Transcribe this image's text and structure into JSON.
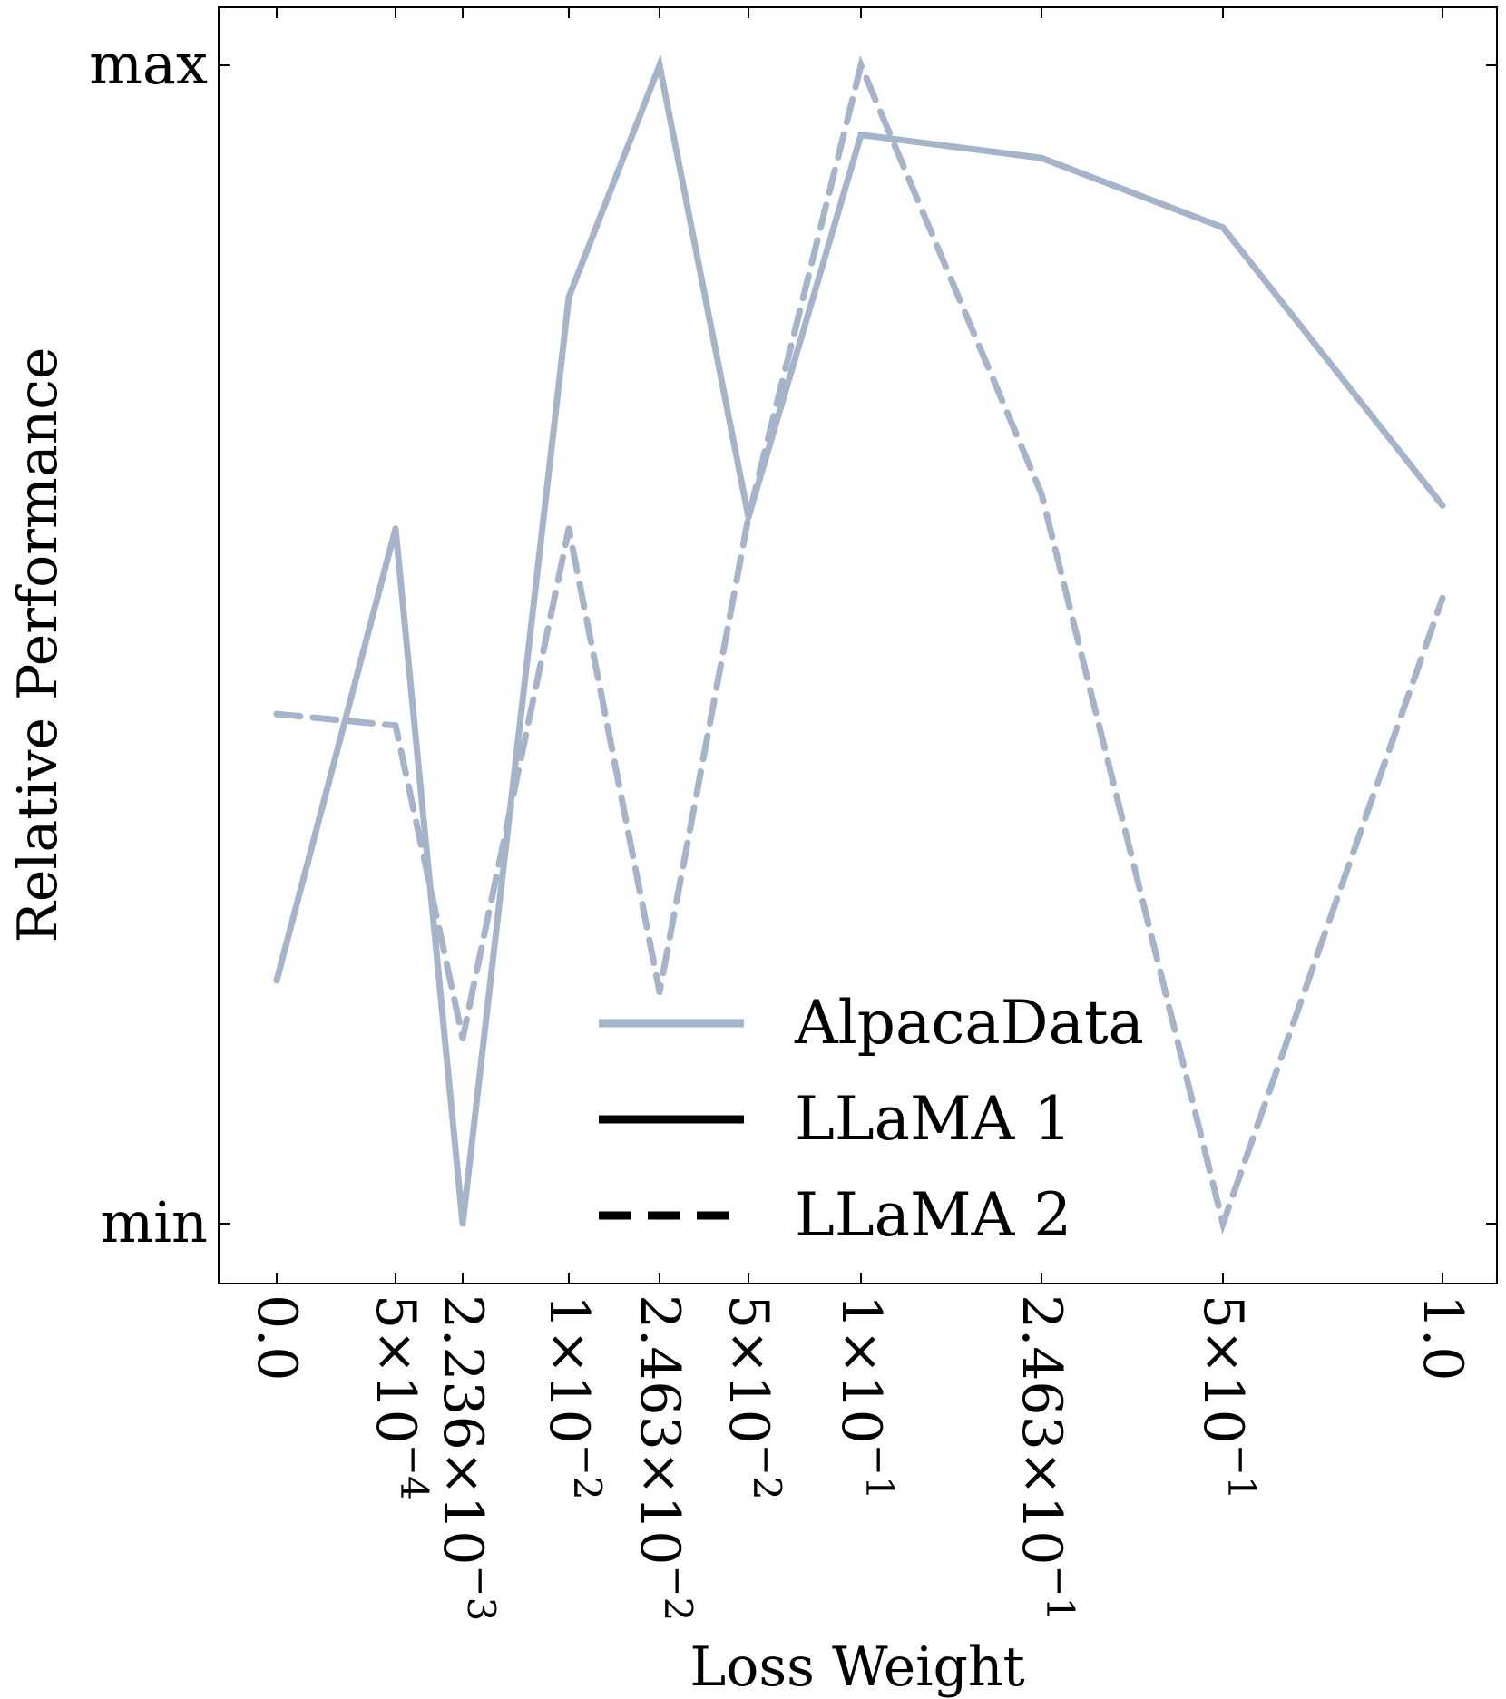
{
  "chart_data": {
    "type": "line",
    "title": "",
    "xlabel": "Loss Weight",
    "ylabel": "Relative Performance",
    "x_ticks": [
      {
        "mant": "0.0",
        "exp": ""
      },
      {
        "mant": "5×10",
        "exp": "−4"
      },
      {
        "mant": "2.236×10",
        "exp": "−3"
      },
      {
        "mant": "1×10",
        "exp": "−2"
      },
      {
        "mant": "2.463×10",
        "exp": "−2"
      },
      {
        "mant": "5×10",
        "exp": "−2"
      },
      {
        "mant": "1×10",
        "exp": "−1"
      },
      {
        "mant": "2.463×10",
        "exp": "−1"
      },
      {
        "mant": "5×10",
        "exp": "−1"
      },
      {
        "mant": "1.0",
        "exp": ""
      }
    ],
    "y_ticks": [
      {
        "label": "max",
        "value": 1.0
      },
      {
        "label": "min",
        "value": 0.0
      }
    ],
    "ylim": [
      -0.05,
      1.05
    ],
    "series": [
      {
        "name": "AlpacaData · LLaMA 1",
        "dataset": "AlpacaData",
        "model": "LLaMA 1",
        "style": "solid",
        "values": [
          0.21,
          0.6,
          0.0,
          0.8,
          1.0,
          0.61,
          0.94,
          0.92,
          0.86,
          0.62
        ]
      },
      {
        "name": "AlpacaData · LLaMA 2",
        "dataset": "AlpacaData",
        "model": "LLaMA 2",
        "style": "dashed",
        "values": [
          0.44,
          0.43,
          0.16,
          0.6,
          0.2,
          0.61,
          1.0,
          0.63,
          0.0,
          0.54
        ]
      }
    ],
    "legend": {
      "position": "lower-center",
      "entries": [
        {
          "label": "AlpacaData",
          "style": "solid",
          "color": "#a6b4c9"
        },
        {
          "label": "LLaMA 1",
          "style": "solid",
          "color": "#000000"
        },
        {
          "label": "LLaMA 2",
          "style": "dashed",
          "color": "#000000"
        }
      ]
    },
    "colors": {
      "line": "#a6b4c9",
      "axis": "#000000",
      "background": "#ffffff"
    }
  }
}
